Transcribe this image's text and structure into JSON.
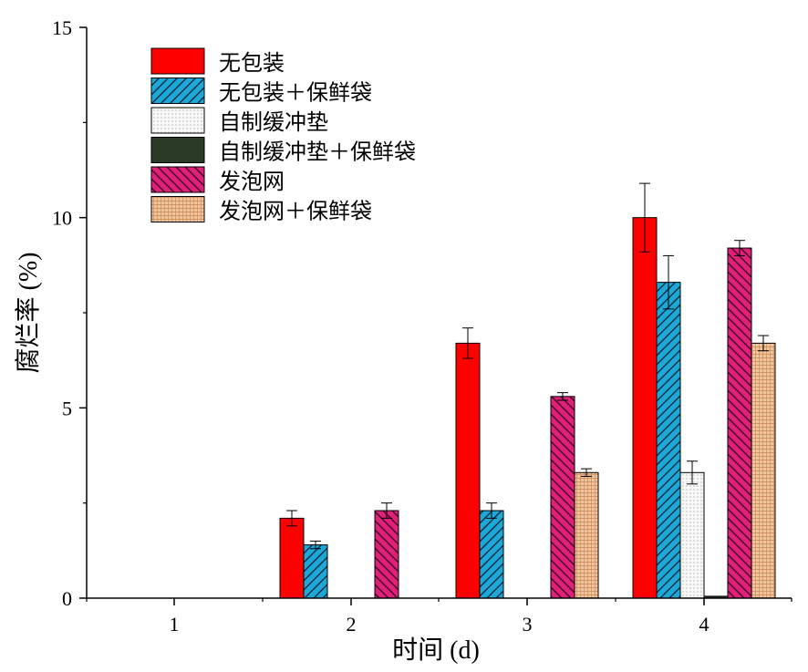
{
  "chart_data": {
    "type": "bar",
    "xlabel": "时间 (d)",
    "ylabel": "腐烂率 (%)",
    "ylim": [
      0,
      15
    ],
    "yticks": [
      0,
      5,
      10,
      15
    ],
    "categories": [
      "1",
      "2",
      "3",
      "4"
    ],
    "legend_position": "top-left",
    "grid": false,
    "series": [
      {
        "name": "无包装",
        "color": "#ff0000",
        "pattern": "solid",
        "values": [
          0,
          2.1,
          6.7,
          10.0
        ],
        "errors": [
          0,
          0.2,
          0.4,
          0.9
        ]
      },
      {
        "name": "无包装＋保鲜袋",
        "color": "#1ca8d8",
        "pattern": "hatch-forward",
        "values": [
          0,
          1.4,
          2.3,
          8.3
        ],
        "errors": [
          0,
          0.1,
          0.2,
          0.7
        ]
      },
      {
        "name": "自制缓冲垫",
        "color": "#f4f4f4",
        "pattern": "dots",
        "values": [
          0,
          0,
          0,
          3.3
        ],
        "errors": [
          0,
          0,
          0,
          0.3
        ]
      },
      {
        "name": "自制缓冲垫＋保鲜袋",
        "color": "#2a3a26",
        "pattern": "solid",
        "values": [
          0,
          0,
          0,
          0.05
        ],
        "errors": [
          0,
          0,
          0,
          0
        ]
      },
      {
        "name": "发泡网",
        "color": "#e0207a",
        "pattern": "hatch-back",
        "values": [
          0,
          2.3,
          5.3,
          9.2
        ],
        "errors": [
          0,
          0.2,
          0.1,
          0.2
        ]
      },
      {
        "name": "发泡网＋保鲜袋",
        "color": "#f2bf95",
        "pattern": "grid",
        "values": [
          0,
          0,
          3.3,
          6.7
        ],
        "errors": [
          0,
          0,
          0.1,
          0.2
        ]
      }
    ]
  }
}
